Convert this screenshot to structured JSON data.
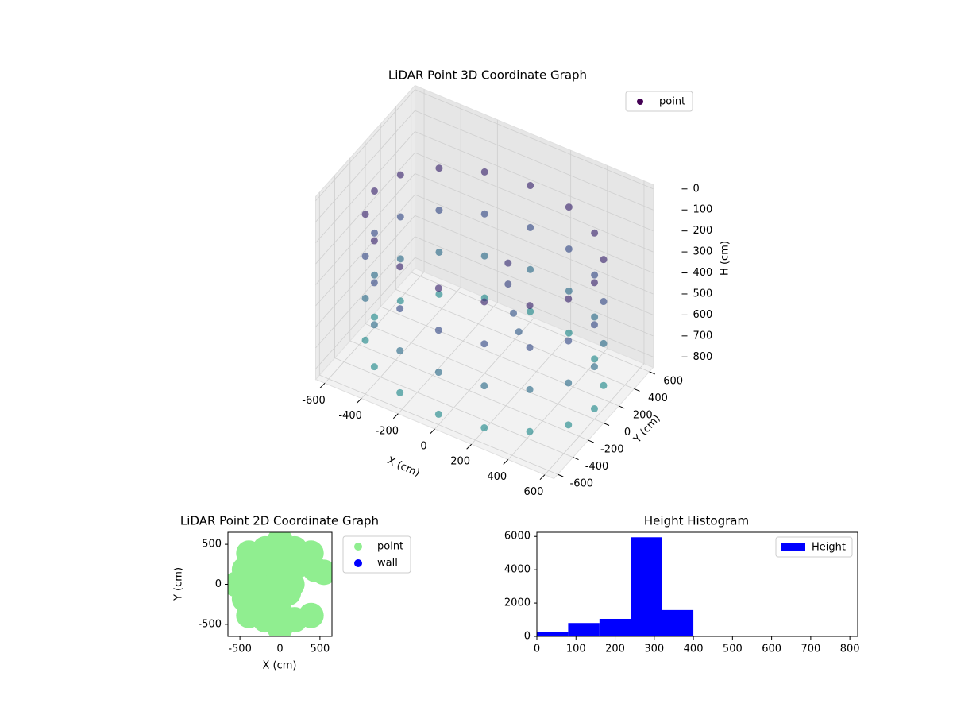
{
  "chart_data": [
    {
      "type": "scatter3d",
      "title": "LiDAR Point 3D Coordinate Graph",
      "xlabel": "X (cm)",
      "ylabel": "Y (cm)",
      "zlabel": "H (cm)",
      "xlim": [
        -650,
        650
      ],
      "ylim": [
        -650,
        650
      ],
      "zlim": [
        850,
        -20
      ],
      "xticks": [
        -600,
        -400,
        -200,
        0,
        200,
        400,
        600
      ],
      "yticks": [
        -600,
        -400,
        -200,
        0,
        200,
        400,
        600
      ],
      "zticks": [
        0,
        100,
        200,
        300,
        400,
        500,
        600,
        700,
        800
      ],
      "cmap": "viridis",
      "legend": "upper right",
      "grid": true,
      "series": [
        {
          "name": "point",
          "color": "#440154",
          "x": [
            600,
            600,
            600,
            600,
            554,
            554,
            554,
            554,
            424,
            424,
            424,
            424,
            230,
            230,
            230,
            230,
            0,
            0,
            0,
            0,
            -230,
            -230,
            -230,
            -230,
            -424,
            -424,
            -424,
            -424,
            -554,
            -554,
            -554,
            -554,
            -600,
            -600,
            -600,
            -600,
            -554,
            -554,
            -554,
            -554,
            -424,
            -424,
            -424,
            -424,
            -230,
            -230,
            -230,
            -230,
            0,
            0,
            0,
            0,
            230,
            230,
            230,
            230,
            424,
            424,
            424,
            424,
            554,
            554,
            554,
            554,
            150,
            150,
            200,
            250
          ],
          "y": [
            0,
            0,
            0,
            0,
            230,
            230,
            230,
            230,
            424,
            424,
            424,
            424,
            554,
            554,
            554,
            554,
            600,
            600,
            600,
            600,
            554,
            554,
            554,
            554,
            424,
            424,
            424,
            424,
            230,
            230,
            230,
            230,
            0,
            0,
            0,
            0,
            -230,
            -230,
            -230,
            -230,
            -424,
            -424,
            -424,
            -424,
            -554,
            -554,
            -554,
            -554,
            -600,
            -600,
            -600,
            -600,
            -554,
            -554,
            -554,
            -554,
            -424,
            -424,
            -424,
            -424,
            -230,
            -230,
            -230,
            -230,
            -50,
            -50,
            -100,
            -150
          ],
          "z": [
            200,
            400,
            600,
            800,
            200,
            400,
            600,
            800,
            200,
            400,
            600,
            800,
            200,
            400,
            600,
            800,
            200,
            400,
            600,
            800,
            200,
            400,
            600,
            800,
            200,
            400,
            600,
            800,
            200,
            400,
            600,
            800,
            200,
            400,
            600,
            800,
            200,
            400,
            600,
            800,
            200,
            400,
            600,
            800,
            200,
            400,
            600,
            800,
            200,
            400,
            600,
            800,
            200,
            400,
            600,
            800,
            200,
            400,
            600,
            800,
            200,
            400,
            600,
            800,
            250,
            350,
            450,
            500
          ]
        }
      ]
    },
    {
      "type": "scatter",
      "title": "LiDAR Point 2D Coordinate Graph",
      "xlabel": "X (cm)",
      "ylabel": "Y (cm)",
      "xlim": [
        -650,
        650
      ],
      "ylim": [
        -650,
        650
      ],
      "xticks": [
        -500,
        0,
        500
      ],
      "yticks": [
        -500,
        0,
        500
      ],
      "legend": "outside upper right",
      "series": [
        {
          "name": "point",
          "color": "#90ee90",
          "x": [
            0,
            150,
            106,
            0,
            -106,
            -150,
            -106,
            0,
            106,
            247,
            0,
            -247,
            -350,
            -247,
            0,
            389,
            0,
            -389,
            -550,
            -389,
            0,
            389,
            550,
            -443,
            -443,
            -184,
            -184,
            184,
            184,
            443
          ],
          "y": [
            0,
            0,
            106,
            150,
            106,
            0,
            -106,
            -150,
            -106,
            247,
            350,
            247,
            0,
            -247,
            -350,
            389,
            550,
            389,
            0,
            -389,
            -550,
            -389,
            150,
            184,
            -184,
            443,
            -443,
            443,
            -443,
            184
          ]
        },
        {
          "name": "wall",
          "color": "#0000ff",
          "x": [],
          "y": []
        }
      ]
    },
    {
      "type": "histogram",
      "title": "Height Histogram",
      "xlim": [
        0,
        820
      ],
      "ylim": [
        0,
        6250
      ],
      "xticks": [
        0,
        100,
        200,
        300,
        400,
        500,
        600,
        700,
        800
      ],
      "yticks": [
        0,
        2000,
        4000,
        6000
      ],
      "bins": [
        0,
        80,
        160,
        240,
        320,
        400,
        480,
        560,
        640,
        720,
        800
      ],
      "counts": [
        280,
        800,
        1050,
        5950,
        1580,
        0,
        0,
        0,
        0,
        0
      ],
      "series_name": "Height",
      "color": "#0000ff",
      "legend": "upper right"
    }
  ]
}
